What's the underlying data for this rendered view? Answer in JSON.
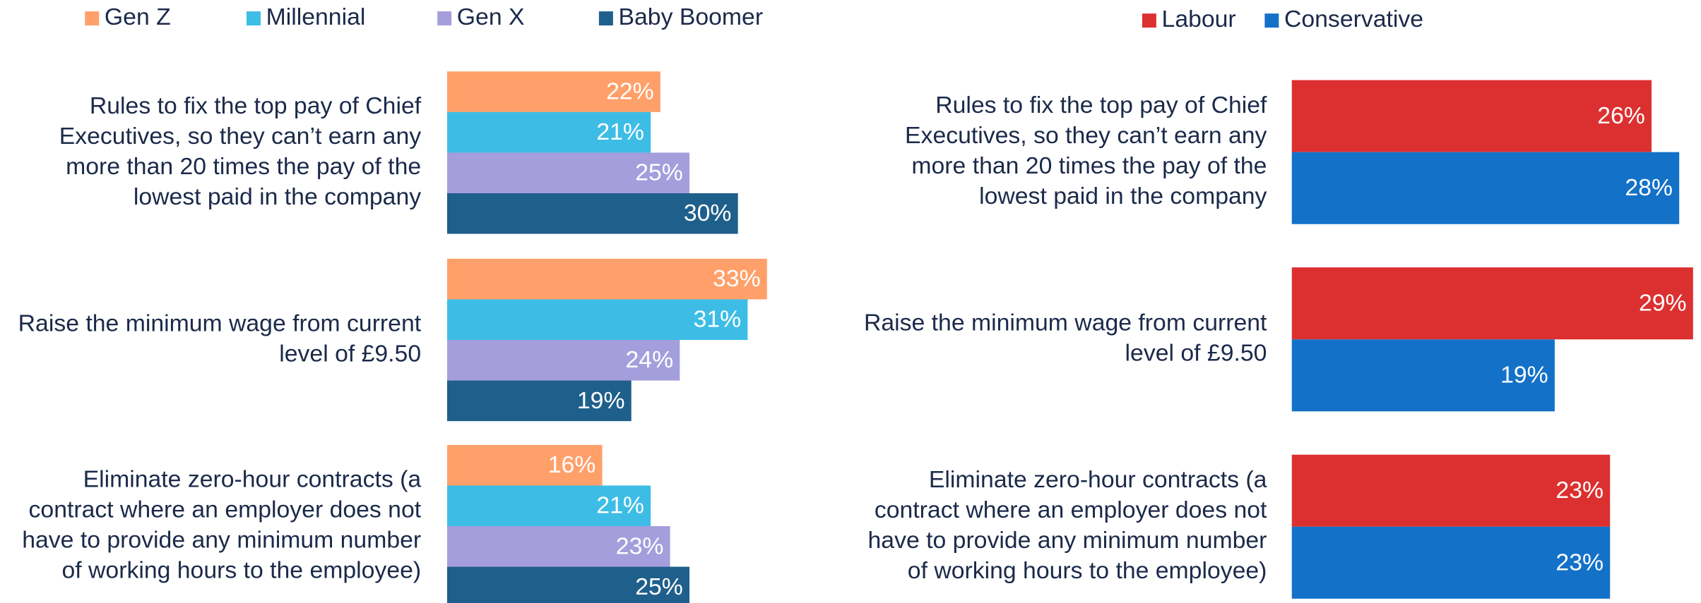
{
  "chart_data": [
    {
      "type": "bar",
      "orientation": "horizontal",
      "categories": [
        [
          "Rules to fix the top pay of Chief",
          "Executives, so they can’t earn any",
          "more than 20 times the pay of the",
          "lowest paid in the company"
        ],
        [
          "Raise the minimum wage from current",
          "level of £9.50"
        ],
        [
          "Eliminate zero-hour contracts (a",
          "contract where an employer does not",
          "have to provide any minimum number",
          "of working hours to the employee)"
        ]
      ],
      "series": [
        {
          "name": "Gen Z",
          "color": "#ffa06a",
          "values": [
            22,
            33,
            16
          ],
          "value_labels": [
            "22%",
            "33%",
            "16%"
          ]
        },
        {
          "name": "Millennial",
          "color": "#3dbde6",
          "values": [
            21,
            31,
            21
          ],
          "value_labels": [
            "21%",
            "31%",
            "21%"
          ]
        },
        {
          "name": "Gen X",
          "color": "#a59edc",
          "values": [
            25,
            24,
            23
          ],
          "value_labels": [
            "25%",
            "24%",
            "23%"
          ]
        },
        {
          "name": "Baby Boomer",
          "color": "#1f5f8b",
          "values": [
            30,
            19,
            25
          ],
          "value_labels": [
            "30%",
            "19%",
            "25%"
          ]
        }
      ]
    },
    {
      "type": "bar",
      "orientation": "horizontal",
      "categories": [
        [
          "Rules to fix the top pay of Chief",
          "Executives, so they can’t earn any",
          "more than 20 times the pay of the",
          "lowest paid in the company"
        ],
        [
          "Raise the minimum wage from current",
          "level of £9.50"
        ],
        [
          "Eliminate zero-hour contracts (a",
          "contract where an employer does not",
          "have to provide any minimum number",
          "of working hours to the employee)"
        ]
      ],
      "series": [
        {
          "name": "Labour",
          "color": "#dc3030",
          "values": [
            26,
            29,
            23
          ],
          "value_labels": [
            "26%",
            "29%",
            "23%"
          ]
        },
        {
          "name": "Conservative",
          "color": "#1471c8",
          "values": [
            28,
            19,
            23
          ],
          "value_labels": [
            "28%",
            "19%",
            "23%"
          ]
        }
      ]
    }
  ]
}
